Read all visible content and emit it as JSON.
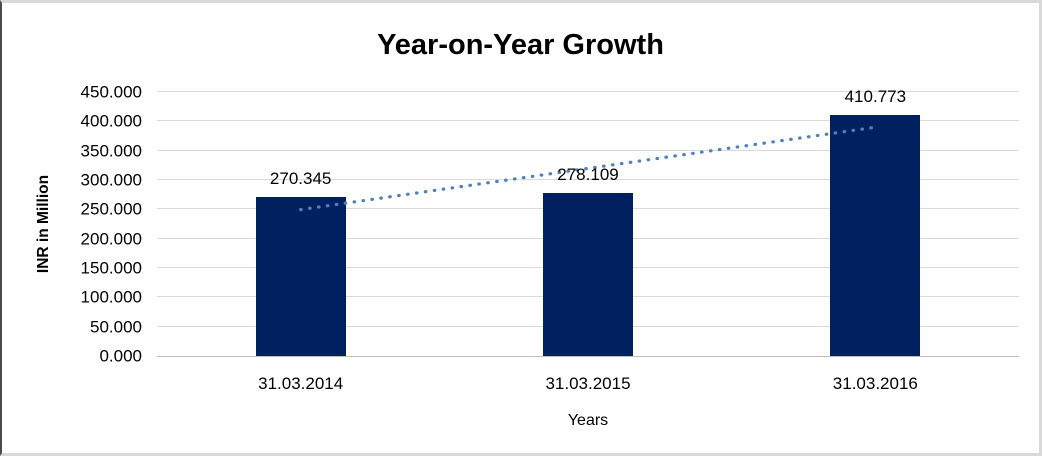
{
  "window": {
    "background": "#ffffff",
    "border_light": "#d9d9d9",
    "border_dark": "#4d4d4d"
  },
  "chart_data": {
    "type": "bar",
    "title": "Year-on-Year Growth",
    "categories": [
      "31.03.2014",
      "31.03.2015",
      "31.03.2016"
    ],
    "values": [
      270.345,
      278.109,
      410.773
    ],
    "data_labels": [
      "270.345",
      "278.109",
      "410.773"
    ],
    "xlabel": "Years",
    "ylabel": "INR in Million",
    "ylim": [
      0,
      450
    ],
    "ytick_step": 50,
    "ytick_labels": [
      "0.000",
      "50.000",
      "100.000",
      "150.000",
      "200.000",
      "250.000",
      "300.000",
      "350.000",
      "400.000",
      "450.000"
    ],
    "grid": true,
    "legend": "none",
    "bar_color": "#002060",
    "gridline_color": "#d9d9d9",
    "axis_line_color": "#bfbfbf",
    "text_color": "#000000",
    "trendline": {
      "type": "linear",
      "style": "dotted",
      "color": "#4f81bd"
    }
  }
}
